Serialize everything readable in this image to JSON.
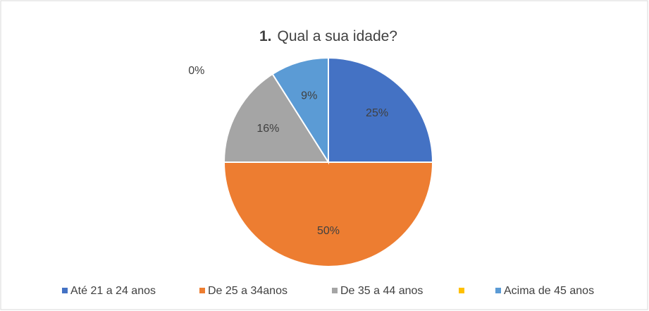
{
  "chart_data": {
    "type": "pie",
    "title": [
      "1.",
      "Qual a sua idade?"
    ],
    "categories": [
      "Até 21 a 24 anos",
      "De 25 a 34anos",
      "De 35 a 44 anos",
      null,
      "Acima de 45 anos"
    ],
    "values": [
      25,
      50,
      16,
      0,
      9
    ],
    "value_labels": [
      "25%",
      "50%",
      "16%",
      "0%",
      "9%"
    ],
    "colors": [
      "#4472c4",
      "#ed7d31",
      "#a5a5a5",
      "#ffc000",
      "#5b9bd5"
    ],
    "legend": "bottom"
  }
}
